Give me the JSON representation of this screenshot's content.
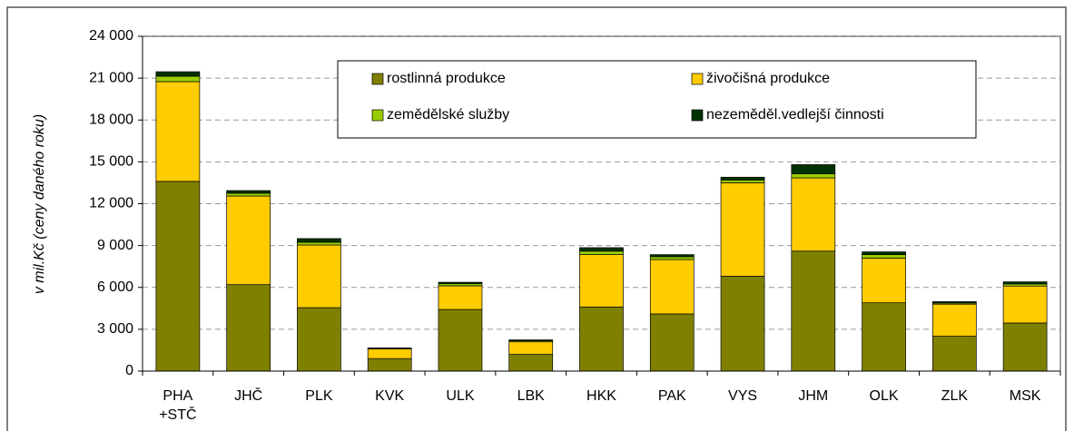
{
  "chart_data": {
    "type": "bar",
    "stacked": true,
    "y_axis_label": "v mil.Kč (ceny daného roku)",
    "categories": [
      "PHA\n+STČ",
      "JHČ",
      "PLK",
      "KVK",
      "ULK",
      "LBK",
      "HKK",
      "PAK",
      "VYS",
      "JHM",
      "OLK",
      "ZLK",
      "MSK"
    ],
    "series": [
      {
        "name": "rostlinná produkce",
        "color": "#808000",
        "values": [
          13600,
          6200,
          4550,
          900,
          4420,
          1200,
          4600,
          4100,
          6800,
          8600,
          4900,
          2500,
          3450
        ]
      },
      {
        "name": "živočišná produkce",
        "color": "#ffcc00",
        "values": [
          7150,
          6350,
          4490,
          700,
          1700,
          900,
          3750,
          3900,
          6700,
          5250,
          3200,
          2300,
          2650
        ]
      },
      {
        "name": "zemědělské služby",
        "color": "#99cc00",
        "values": [
          390,
          200,
          200,
          40,
          150,
          80,
          250,
          200,
          200,
          300,
          250,
          80,
          150
        ]
      },
      {
        "name": "nezeměděl.vedlejší činnosti",
        "color": "#003300",
        "values": [
          320,
          190,
          260,
          20,
          100,
          60,
          250,
          150,
          200,
          650,
          200,
          100,
          150
        ]
      }
    ],
    "ylim": [
      0,
      24000
    ],
    "yticks": [
      0,
      {
        "value": 3000,
        "label": "3 000"
      },
      {
        "value": 6000,
        "label": "6 000"
      },
      {
        "value": 9000,
        "label": "9 000"
      },
      {
        "value": 12000,
        "label": "12 000"
      },
      {
        "value": 15000,
        "label": "15 000"
      },
      {
        "value": 18000,
        "label": "18 000"
      },
      {
        "value": 21000,
        "label": "21 000"
      },
      {
        "value": 24000,
        "label": "24 000"
      }
    ],
    "grid": true
  }
}
